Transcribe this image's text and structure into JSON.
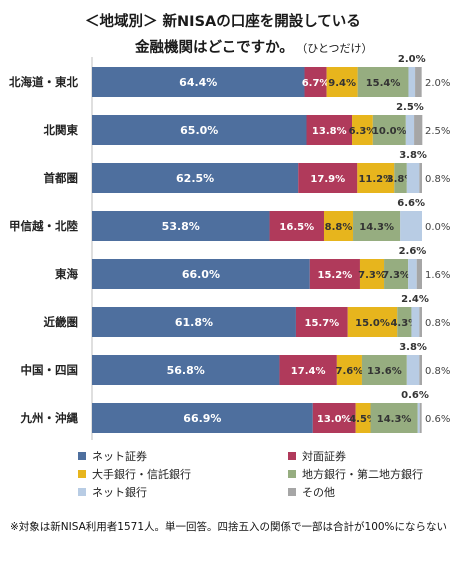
{
  "title": {
    "line1": "＜地域別＞ 新NISAの口座を開設している",
    "line2": "金融機関はどこですか。",
    "note": "（ひとつだけ）"
  },
  "footnote": "※対象は新NISA利用者1571人。単一回答。四捨五入の関係で一部は合計が100%にならない",
  "colors": {
    "ネット証券": "#4e6f9e",
    "対面証券": "#b03a5b",
    "大手銀行・信託銀行": "#e7b51d",
    "地方銀行・第二地方銀行": "#96ad80",
    "ネット銀行": "#b8cce4",
    "その他": "#a6a6a6"
  },
  "chart_data": {
    "type": "bar",
    "orientation": "horizontal",
    "stacked": true,
    "categories": [
      "北海道・東北",
      "北関東",
      "首都圏",
      "甲信越・北陸",
      "東海",
      "近畿圏",
      "中国・四国",
      "九州・沖縄"
    ],
    "series": [
      {
        "name": "ネット証券",
        "values": [
          64.4,
          65.0,
          62.5,
          53.8,
          66.0,
          61.8,
          56.8,
          66.9
        ]
      },
      {
        "name": "対面証券",
        "values": [
          6.7,
          13.8,
          17.9,
          16.5,
          15.2,
          15.7,
          17.4,
          13.0
        ]
      },
      {
        "name": "大手銀行・信託銀行",
        "values": [
          9.4,
          6.3,
          11.2,
          8.8,
          7.3,
          15.0,
          7.6,
          4.5
        ]
      },
      {
        "name": "地方銀行・第二地方銀行",
        "values": [
          15.4,
          10.0,
          3.8,
          14.3,
          7.3,
          4.3,
          13.6,
          14.3
        ]
      },
      {
        "name": "ネット銀行",
        "values": [
          2.0,
          2.5,
          3.8,
          6.6,
          2.6,
          2.4,
          3.8,
          0.6
        ]
      },
      {
        "name": "その他",
        "values": [
          2.0,
          2.5,
          0.8,
          0.0,
          1.6,
          0.8,
          0.8,
          0.6
        ]
      }
    ],
    "value_labels": [
      [
        "64.4%",
        "6.7%",
        "9.4%",
        "15.4%",
        "2.0%",
        "2.0%"
      ],
      [
        "65.0%",
        "13.8%",
        "6.3%",
        "10.0%",
        "2.5%",
        "2.5%"
      ],
      [
        "62.5%",
        "17.9%",
        "11.2%",
        "3.8%",
        "3.8%",
        "0.8%"
      ],
      [
        "53.8%",
        "16.5%",
        "8.8%",
        "14.3%",
        "6.6%",
        "0.0%"
      ],
      [
        "66.0%",
        "15.2%",
        "7.3%",
        "7.3%",
        "2.6%",
        "1.6%"
      ],
      [
        "61.8%",
        "15.7%",
        "15.0%",
        "4.3%",
        "2.4%",
        "0.8%"
      ],
      [
        "56.8%",
        "17.4%",
        "7.6%",
        "13.6%",
        "3.8%",
        "0.8%"
      ],
      [
        "66.9%",
        "13.0%",
        "4.5%",
        "14.3%",
        "0.6%",
        "0.6%"
      ]
    ],
    "xlim": [
      0,
      100
    ],
    "grid": false,
    "legend_position": "bottom"
  }
}
